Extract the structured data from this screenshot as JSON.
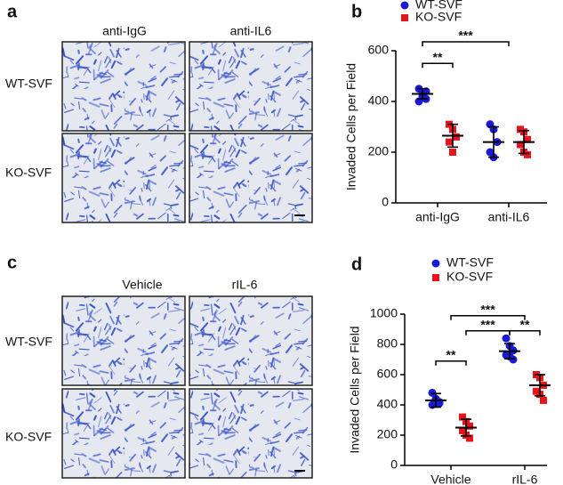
{
  "panels": [
    {
      "letter": "a",
      "columns": [
        "anti-IgG",
        "anti-IL6"
      ],
      "rows": [
        "WT-SVF",
        "KO-SVF"
      ]
    },
    {
      "letter": "c",
      "columns": [
        "Vehicle",
        "rIL-6"
      ],
      "rows": [
        "WT-SVF",
        "KO-SVF"
      ]
    }
  ],
  "chart_data": [
    {
      "type": "dot",
      "panel": "b",
      "y_label": "Invaded Cells per Field",
      "categories": [
        "anti-IgG",
        "anti-IL6"
      ],
      "ylim": [
        0,
        600
      ],
      "yticks": [
        0,
        200,
        400,
        600
      ],
      "series": [
        {
          "name": "WT-SVF",
          "color": "#1a1ad6",
          "marker": "circle",
          "values": [
            [
              400,
              420,
              440,
              450,
              430,
              410
            ],
            [
              310,
              290,
              240,
              200,
              180
            ]
          ],
          "means": [
            430,
            240
          ],
          "sds": [
            20,
            60
          ]
        },
        {
          "name": "KO-SVF",
          "color": "#e8141c",
          "marker": "square",
          "values": [
            [
              310,
              290,
              260,
              240,
              200
            ],
            [
              290,
              280,
              250,
              230,
              200,
              190
            ]
          ],
          "means": [
            265,
            240
          ],
          "sds": [
            45,
            45
          ]
        }
      ],
      "annotations": [
        "**",
        "***"
      ]
    },
    {
      "type": "dot",
      "panel": "d",
      "y_label": "Invaded Cells per Field",
      "categories": [
        "Vehicle",
        "rIL-6"
      ],
      "ylim": [
        0,
        1000
      ],
      "yticks": [
        0,
        200,
        400,
        600,
        800,
        1000
      ],
      "series": [
        {
          "name": "WT-SVF",
          "color": "#1a1ad6",
          "marker": "circle",
          "values": [
            [
              480,
              440,
              420,
              400,
              430,
              410
            ],
            [
              840,
              790,
              760,
              730,
              720,
              700
            ]
          ],
          "means": [
            430,
            755
          ],
          "sds": [
            45,
            50
          ]
        },
        {
          "name": "KO-SVF",
          "color": "#e8141c",
          "marker": "square",
          "values": [
            [
              320,
              290,
              260,
              230,
              200,
              180
            ],
            [
              600,
              580,
              530,
              490,
              470,
              430
            ]
          ],
          "means": [
            250,
            530
          ],
          "sds": [
            55,
            70
          ]
        }
      ],
      "annotations": [
        "**",
        "***",
        "***",
        "**"
      ]
    }
  ]
}
